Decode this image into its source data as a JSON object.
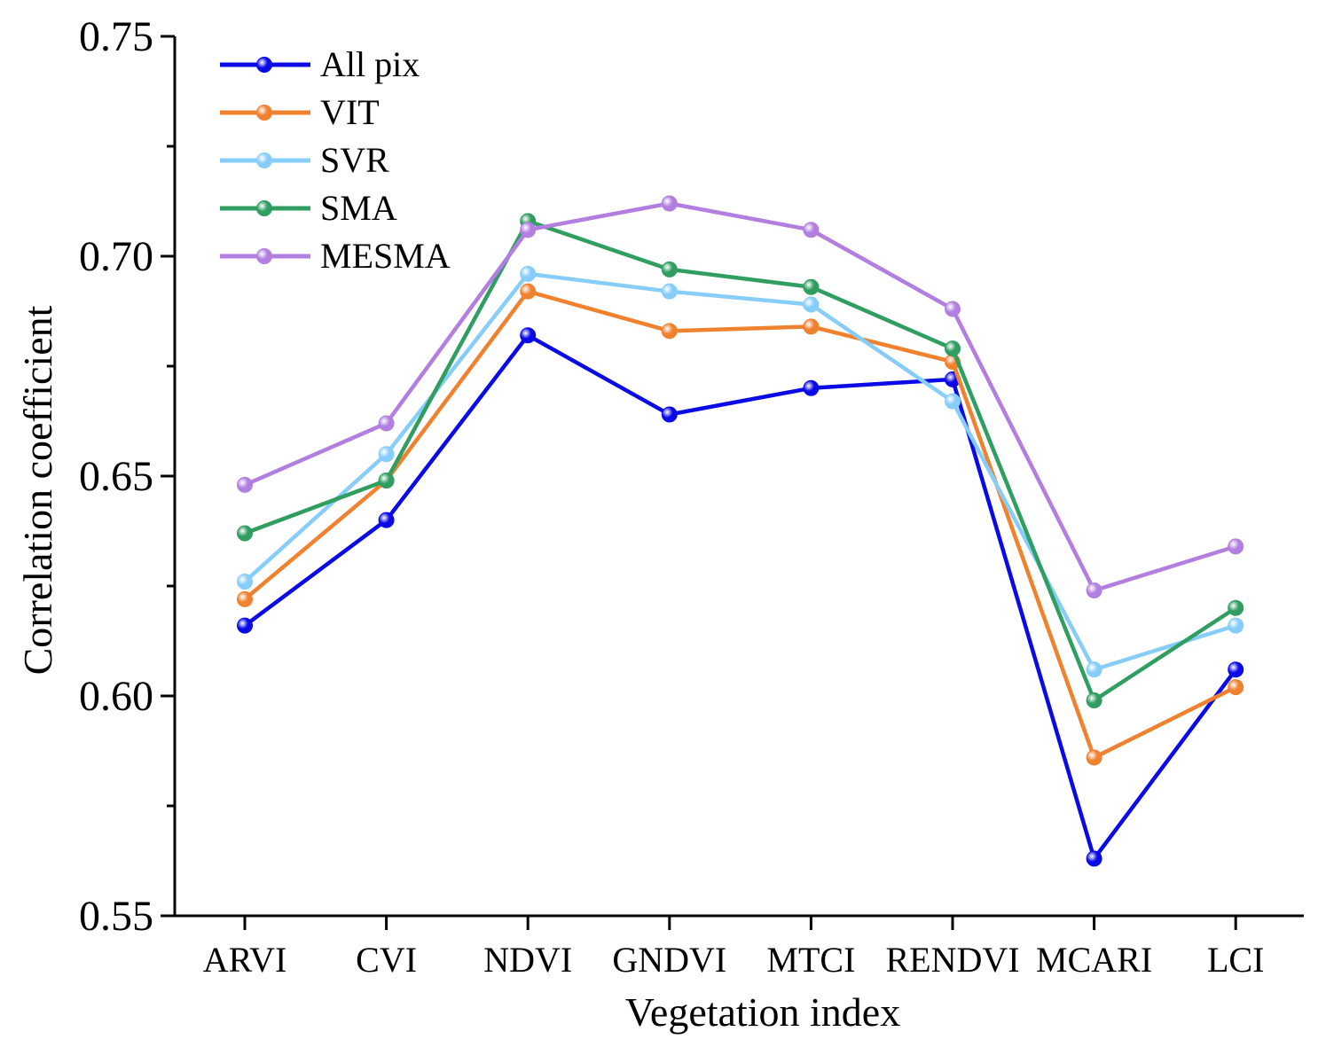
{
  "chart_data": {
    "type": "line",
    "title": "",
    "xlabel": "Vegetation index",
    "ylabel": "Correlation coefficient",
    "categories": [
      "ARVI",
      "CVI",
      "NDVI",
      "GNDVI",
      "MTCI",
      "RENDVI",
      "MCARI",
      "LCI"
    ],
    "ylim": [
      0.55,
      0.75
    ],
    "yticks": [
      0.55,
      0.6,
      0.65,
      0.7,
      0.75
    ],
    "ytick_labels": [
      "0.55",
      "0.60",
      "0.65",
      "0.70",
      "0.75"
    ],
    "grid": false,
    "legend_position": "top-left",
    "series": [
      {
        "name": "All pix",
        "color": "#0a0ae6",
        "values": [
          0.616,
          0.64,
          0.682,
          0.664,
          0.67,
          0.672,
          0.563,
          0.606
        ]
      },
      {
        "name": "VIT",
        "color": "#f0812e",
        "values": [
          0.622,
          0.649,
          0.692,
          0.683,
          0.684,
          0.676,
          0.586,
          0.602
        ]
      },
      {
        "name": "SVR",
        "color": "#86cdf9",
        "values": [
          0.626,
          0.655,
          0.696,
          0.692,
          0.689,
          0.667,
          0.606,
          0.616
        ]
      },
      {
        "name": "SMA",
        "color": "#2f9e60",
        "values": [
          0.637,
          0.649,
          0.708,
          0.697,
          0.693,
          0.679,
          0.599,
          0.62
        ]
      },
      {
        "name": "MESMA",
        "color": "#b27ee0",
        "values": [
          0.648,
          0.662,
          0.706,
          0.712,
          0.706,
          0.688,
          0.624,
          0.634
        ]
      }
    ]
  }
}
